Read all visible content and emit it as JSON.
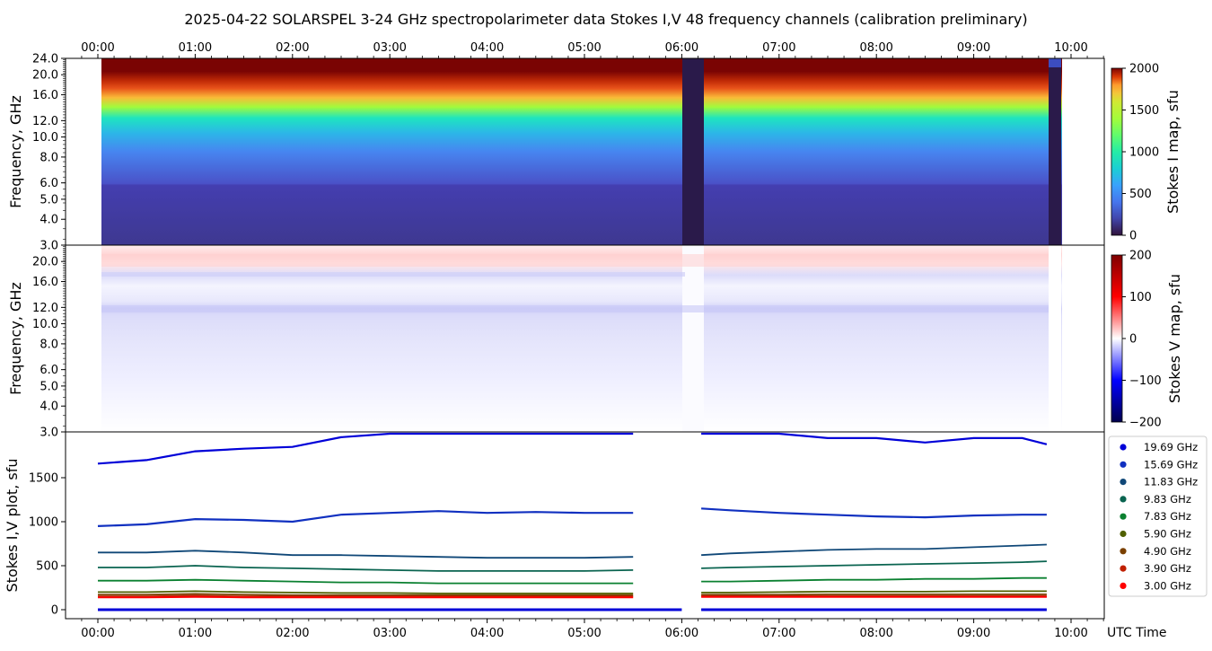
{
  "title": "2025-04-22  SOLARSPEL  3-24 GHz spectropolarimeter data   Stokes I,V   48 frequency channels   (calibration preliminary)",
  "time_axis": {
    "ticks": [
      "00:00",
      "01:00",
      "02:00",
      "03:00",
      "04:00",
      "05:00",
      "06:00",
      "07:00",
      "08:00",
      "09:00",
      "10:00"
    ],
    "xlabel": "UTC Time"
  },
  "colors": {
    "turbo_low": "#30123b",
    "turbo_high": "#7a0403",
    "seismic_neg": "#00004c",
    "seismic_pos": "#7f0000",
    "gap": "#2a1a4a"
  },
  "chart_data": [
    {
      "type": "heatmap",
      "name": "stokes-i-map",
      "x_range": [
        "00:00",
        "09:50"
      ],
      "ylabel": "Frequency, GHz",
      "yticks": [
        "3.0",
        "4.0",
        "5.0",
        "6.0",
        "8.0",
        "10.0",
        "12.0",
        "16.0",
        "20.0",
        "24.0"
      ],
      "ylim": [
        3.0,
        24.0
      ],
      "yscale": "log",
      "colorbar": {
        "label": "Stokes I map, sfu",
        "ticks": [
          "0",
          "500",
          "1000",
          "1500",
          "2000"
        ],
        "range": [
          0,
          2000
        ],
        "colormap": "turbo"
      },
      "data_gaps": [
        [
          "06:00",
          "06:12"
        ],
        [
          "09:44",
          "09:50"
        ]
      ],
      "channel_levels": [
        {
          "freq": 3.0,
          "sfu": 100
        },
        {
          "freq": 5.9,
          "sfu": 200
        },
        {
          "freq": 7.83,
          "sfu": 330
        },
        {
          "freq": 9.83,
          "sfu": 480
        },
        {
          "freq": 11.83,
          "sfu": 640
        },
        {
          "freq": 15.69,
          "sfu": 1050
        },
        {
          "freq": 19.69,
          "sfu": 1850
        },
        {
          "freq": 24.0,
          "sfu": 2000
        }
      ]
    },
    {
      "type": "heatmap",
      "name": "stokes-v-map",
      "ylabel": "Frequency, GHz",
      "yticks": [
        "3.0",
        "4.0",
        "5.0",
        "6.0",
        "8.0",
        "10.0",
        "12.0",
        "16.0",
        "20.0"
      ],
      "ylim": [
        3.0,
        24.0
      ],
      "yscale": "log",
      "colorbar": {
        "label": "Stokes V map, sfu",
        "ticks": [
          "200",
          "100",
          "0",
          "−100",
          "−200"
        ],
        "range": [
          -200,
          200
        ],
        "colormap": "seismic"
      }
    },
    {
      "type": "line",
      "name": "stokes-iv-plot",
      "ylabel": "Stokes I,V plot, sfu",
      "yticks": [
        "0",
        "500",
        "1000",
        "1500"
      ],
      "ylim": [
        -80,
        2000
      ],
      "x_hours": [
        0,
        0.5,
        1,
        1.5,
        2,
        2.5,
        3,
        3.5,
        4,
        4.5,
        5,
        5.5,
        6,
        6.2,
        6.5,
        7,
        7.5,
        8,
        8.5,
        9,
        9.5,
        9.75
      ],
      "series": [
        {
          "name": "19.69 GHz",
          "color": "#0000d8",
          "values": [
            1660,
            1700,
            1800,
            1830,
            1850,
            1960,
            2000,
            2000,
            2000,
            2000,
            2000,
            2000,
            null,
            2000,
            2000,
            2000,
            1950,
            1950,
            1900,
            1950,
            1950,
            1880
          ]
        },
        {
          "name": "15.69 GHz",
          "color": "#1030c0",
          "values": [
            950,
            970,
            1030,
            1020,
            1000,
            1080,
            1100,
            1120,
            1100,
            1110,
            1100,
            1100,
            null,
            1150,
            1130,
            1100,
            1080,
            1060,
            1050,
            1070,
            1080,
            1080
          ]
        },
        {
          "name": "11.83 GHz",
          "color": "#104878",
          "values": [
            650,
            650,
            670,
            650,
            620,
            620,
            610,
            600,
            590,
            590,
            590,
            600,
            null,
            620,
            640,
            660,
            680,
            690,
            690,
            710,
            730,
            740
          ]
        },
        {
          "name": "9.83 GHz",
          "color": "#0a6450",
          "values": [
            480,
            480,
            500,
            480,
            470,
            460,
            450,
            440,
            440,
            440,
            440,
            450,
            null,
            470,
            480,
            490,
            500,
            510,
            520,
            530,
            540,
            550
          ]
        },
        {
          "name": "7.83 GHz",
          "color": "#0a8030",
          "values": [
            330,
            330,
            340,
            330,
            320,
            310,
            310,
            300,
            300,
            300,
            300,
            300,
            null,
            320,
            320,
            330,
            340,
            340,
            350,
            350,
            360,
            360
          ]
        },
        {
          "name": "5.90 GHz",
          "color": "#506000",
          "values": [
            200,
            200,
            210,
            200,
            195,
            190,
            190,
            185,
            185,
            185,
            185,
            185,
            null,
            195,
            195,
            200,
            205,
            205,
            205,
            210,
            210,
            210
          ]
        },
        {
          "name": "4.90 GHz",
          "color": "#7a4000",
          "values": [
            170,
            170,
            180,
            170,
            165,
            165,
            165,
            165,
            165,
            165,
            165,
            165,
            null,
            170,
            170,
            170,
            175,
            175,
            175,
            175,
            175,
            175
          ]
        },
        {
          "name": "3.90 GHz",
          "color": "#c02000",
          "values": [
            150,
            150,
            160,
            150,
            150,
            150,
            150,
            150,
            150,
            150,
            150,
            150,
            null,
            155,
            155,
            155,
            155,
            155,
            155,
            155,
            155,
            155
          ]
        },
        {
          "name": "3.00 GHz",
          "color": "#ff0000",
          "values": [
            140,
            140,
            145,
            140,
            140,
            140,
            140,
            140,
            140,
            140,
            140,
            140,
            null,
            145,
            145,
            145,
            145,
            145,
            145,
            145,
            145,
            145
          ]
        }
      ]
    }
  ]
}
